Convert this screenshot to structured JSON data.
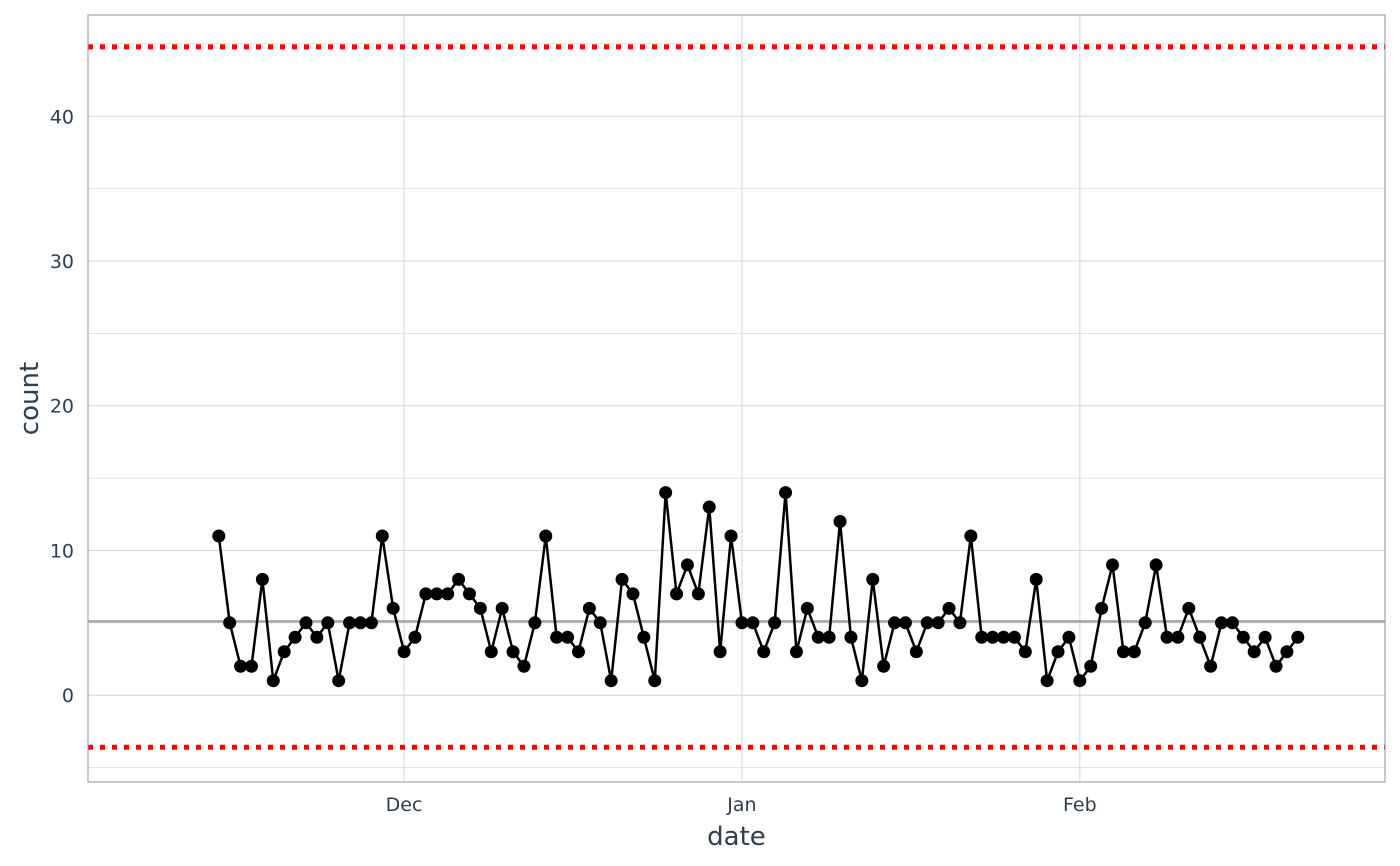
{
  "chart_data": {
    "type": "line",
    "xlabel": "date",
    "ylabel": "count",
    "x_start": "2022-11-14",
    "x_ticks": [
      {
        "label": "Dec",
        "date": "2022-12-01"
      },
      {
        "label": "Jan",
        "date": "2023-01-01"
      },
      {
        "label": "Feb",
        "date": "2023-02-01"
      }
    ],
    "y_ticks": [
      0,
      10,
      20,
      30,
      40
    ],
    "ylim": [
      -6,
      47
    ],
    "xlim": [
      "2022-11-02",
      "2023-03-01"
    ],
    "grid": true,
    "values": [
      11,
      5,
      2,
      2,
      8,
      1,
      3,
      4,
      5,
      4,
      5,
      1,
      5,
      5,
      5,
      11,
      6,
      3,
      4,
      7,
      7,
      7,
      8,
      7,
      6,
      3,
      6,
      3,
      2,
      5,
      11,
      4,
      4,
      3,
      6,
      5,
      1,
      8,
      7,
      4,
      1,
      14,
      7,
      9,
      7,
      13,
      3,
      11,
      5,
      5,
      3,
      5,
      14,
      3,
      6,
      4,
      4,
      12,
      4,
      1,
      8,
      2,
      5,
      5,
      3,
      5,
      5,
      6,
      5,
      11,
      4,
      4,
      4,
      4,
      3,
      8,
      1,
      3,
      4,
      1,
      2,
      6,
      9,
      3,
      3,
      5,
      9,
      4,
      4,
      6,
      4,
      2,
      5,
      5,
      4,
      3,
      4,
      2,
      3,
      4
    ],
    "center_line": 5.1,
    "upper_limit": 44.8,
    "lower_limit": -3.6,
    "colors": {
      "series": "#000000",
      "center": "#a6a6a6",
      "limits": "#ff0000",
      "grid": "#d9d9d9",
      "panel_border": "#8c969f"
    }
  }
}
